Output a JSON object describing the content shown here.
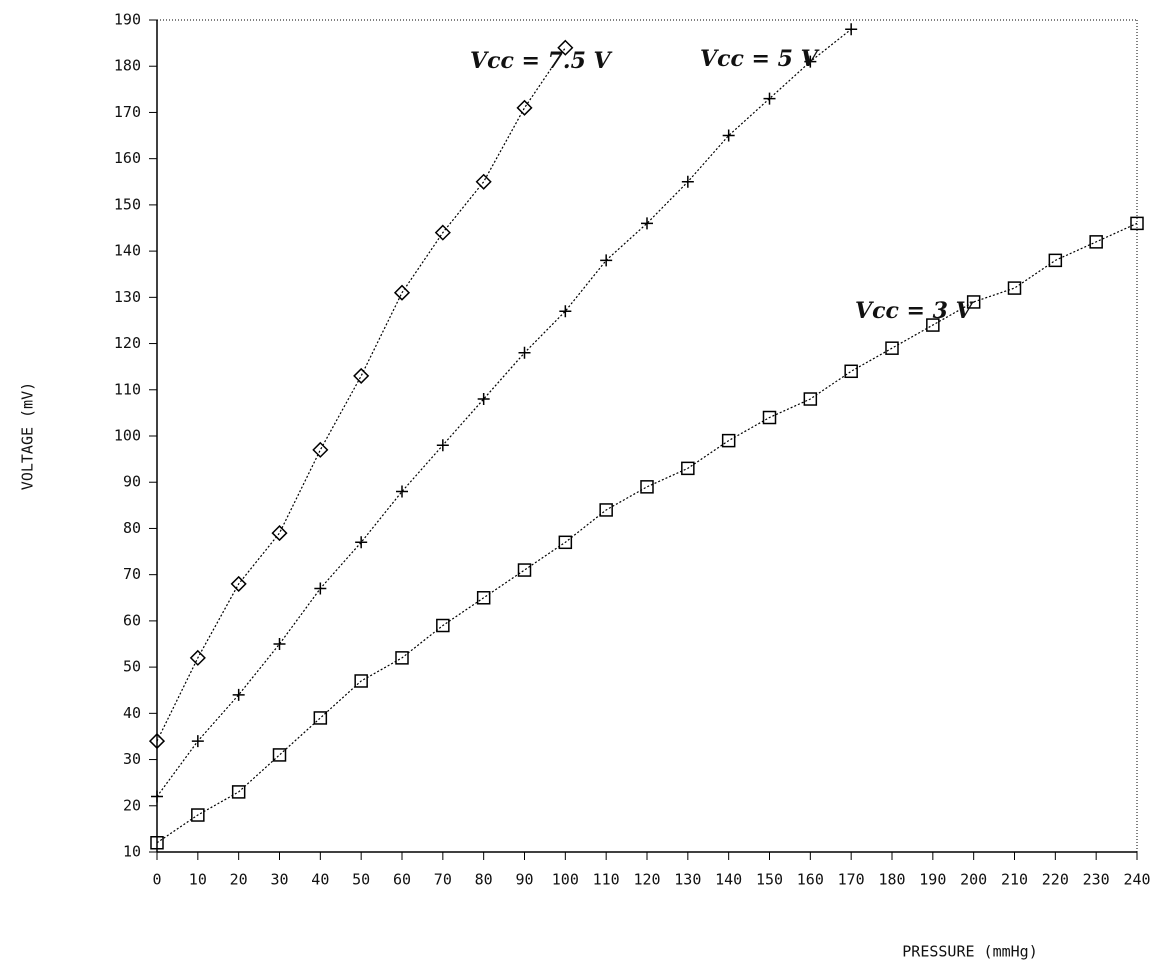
{
  "chart_data": {
    "type": "line",
    "x_label": "PRESSURE (mmHg)",
    "y_label": "VOLTAGE (mV)",
    "x": [
      0,
      10,
      20,
      30,
      40,
      50,
      60,
      70,
      80,
      90,
      100,
      110,
      120,
      130,
      140,
      150,
      160,
      170,
      180,
      190,
      200,
      210,
      220,
      230,
      240
    ],
    "series": [
      {
        "name": "Vcc = 7.5 V",
        "color": "#000000",
        "marker": "diamond",
        "values": [
          34,
          52,
          68,
          79,
          97,
          113,
          131,
          144,
          155,
          171,
          184,
          null,
          null,
          null,
          null,
          null,
          null,
          null,
          null,
          null,
          null,
          null,
          null,
          null,
          null
        ]
      },
      {
        "name": "Vcc = 5 V",
        "color": "#000000",
        "marker": "plus",
        "values": [
          22,
          34,
          44,
          55,
          67,
          77,
          88,
          98,
          108,
          118,
          127,
          138,
          146,
          155,
          165,
          173,
          181,
          188,
          null,
          null,
          null,
          null,
          null,
          null,
          null
        ]
      },
      {
        "name": "Vcc = 3 V",
        "color": "#000000",
        "marker": "square",
        "values": [
          12,
          18,
          23,
          31,
          39,
          47,
          52,
          59,
          65,
          71,
          77,
          84,
          89,
          93,
          99,
          104,
          108,
          114,
          119,
          124,
          129,
          132,
          138,
          142,
          146
        ]
      }
    ],
    "xlim": [
      0,
      240
    ],
    "xticks": [
      0,
      10,
      20,
      30,
      40,
      50,
      60,
      70,
      80,
      90,
      100,
      110,
      120,
      130,
      140,
      150,
      160,
      170,
      180,
      190,
      200,
      210,
      220,
      230,
      240
    ],
    "ylim": [
      10,
      190
    ],
    "yticks": [
      10,
      20,
      30,
      40,
      50,
      60,
      70,
      80,
      90,
      100,
      110,
      120,
      130,
      140,
      150,
      160,
      170,
      180,
      190
    ],
    "grid": false
  }
}
